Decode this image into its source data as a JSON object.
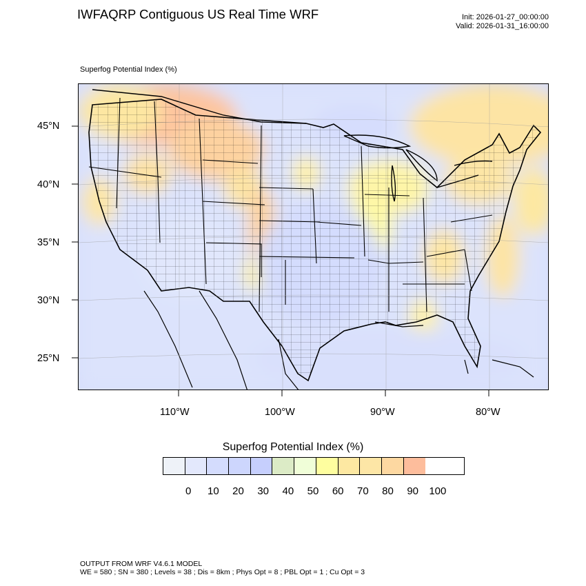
{
  "header": {
    "title": "IWFAQRP Contiguous US Real Time WRF",
    "init": "Init: 2026-01-27_00:00:00",
    "valid": "Valid: 2026-01-31_16:00:00"
  },
  "field_label": "Superfog Potential Index   (%)",
  "axes": {
    "lat_labels": [
      "45°N",
      "40°N",
      "35°N",
      "30°N",
      "25°N"
    ],
    "lon_labels": [
      "110°W",
      "100°W",
      "90°W",
      "80°W"
    ]
  },
  "legend": {
    "title": "Superfog Potential Index  (%)",
    "colors": [
      "#eef2f8",
      "#e3e8fc",
      "#d4dcfd",
      "#cdd6fd",
      "#c6cffd",
      "#dcebc6",
      "#f0fed8",
      "#fefe9f",
      "#fde8a2",
      "#fde6a6",
      "#fdd8a1",
      "#fdbd9c"
    ],
    "tick_labels": [
      "0",
      "10",
      "20",
      "30",
      "40",
      "50",
      "60",
      "70",
      "80",
      "90",
      "100"
    ]
  },
  "footer": {
    "line1": "OUTPUT FROM WRF V4.6.1 MODEL",
    "line2": "WE = 580 ; SN = 380 ; Levels = 38 ; Dis = 8km ; Phys Opt = 8 ; PBL Opt = 1 ; Cu Opt = 3"
  }
}
